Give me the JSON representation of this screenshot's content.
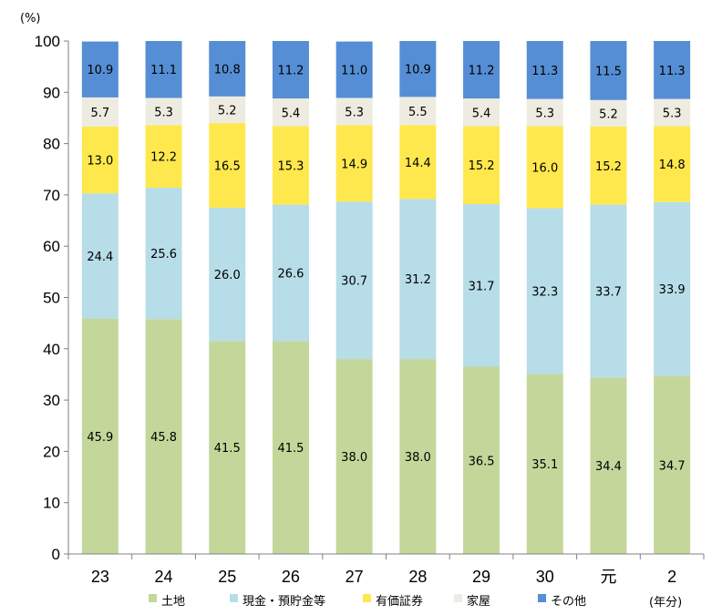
{
  "chart_data": {
    "type": "bar",
    "stacked": true,
    "y_unit": "(%)",
    "x_unit": "(年分)",
    "ylim": [
      0,
      100
    ],
    "yticks": [
      0,
      10,
      20,
      30,
      40,
      50,
      60,
      70,
      80,
      90,
      100
    ],
    "categories": [
      "23",
      "24",
      "25",
      "26",
      "27",
      "28",
      "29",
      "30",
      "元",
      "2"
    ],
    "series": [
      {
        "name": "土地",
        "color": "#c4d79b",
        "values": [
          45.9,
          45.8,
          41.5,
          41.5,
          38.0,
          38.0,
          36.5,
          35.1,
          34.4,
          34.7
        ]
      },
      {
        "name": "現金・預貯金等",
        "color": "#b7dde8",
        "values": [
          24.4,
          25.6,
          26.0,
          26.6,
          30.7,
          31.2,
          31.7,
          32.3,
          33.7,
          33.9
        ]
      },
      {
        "name": "有価証券",
        "color": "#ffe84d",
        "values": [
          13.0,
          12.2,
          16.5,
          15.3,
          14.9,
          14.4,
          15.2,
          16.0,
          15.2,
          14.8
        ]
      },
      {
        "name": "家屋",
        "color": "#eeece1",
        "values": [
          5.7,
          5.3,
          5.2,
          5.4,
          5.3,
          5.5,
          5.4,
          5.3,
          5.2,
          5.3
        ]
      },
      {
        "name": "その他",
        "color": "#558ed5",
        "values": [
          10.9,
          11.1,
          10.8,
          11.2,
          11.0,
          10.9,
          11.2,
          11.3,
          11.5,
          11.3
        ]
      }
    ],
    "grid": false,
    "legend_position": "bottom"
  }
}
